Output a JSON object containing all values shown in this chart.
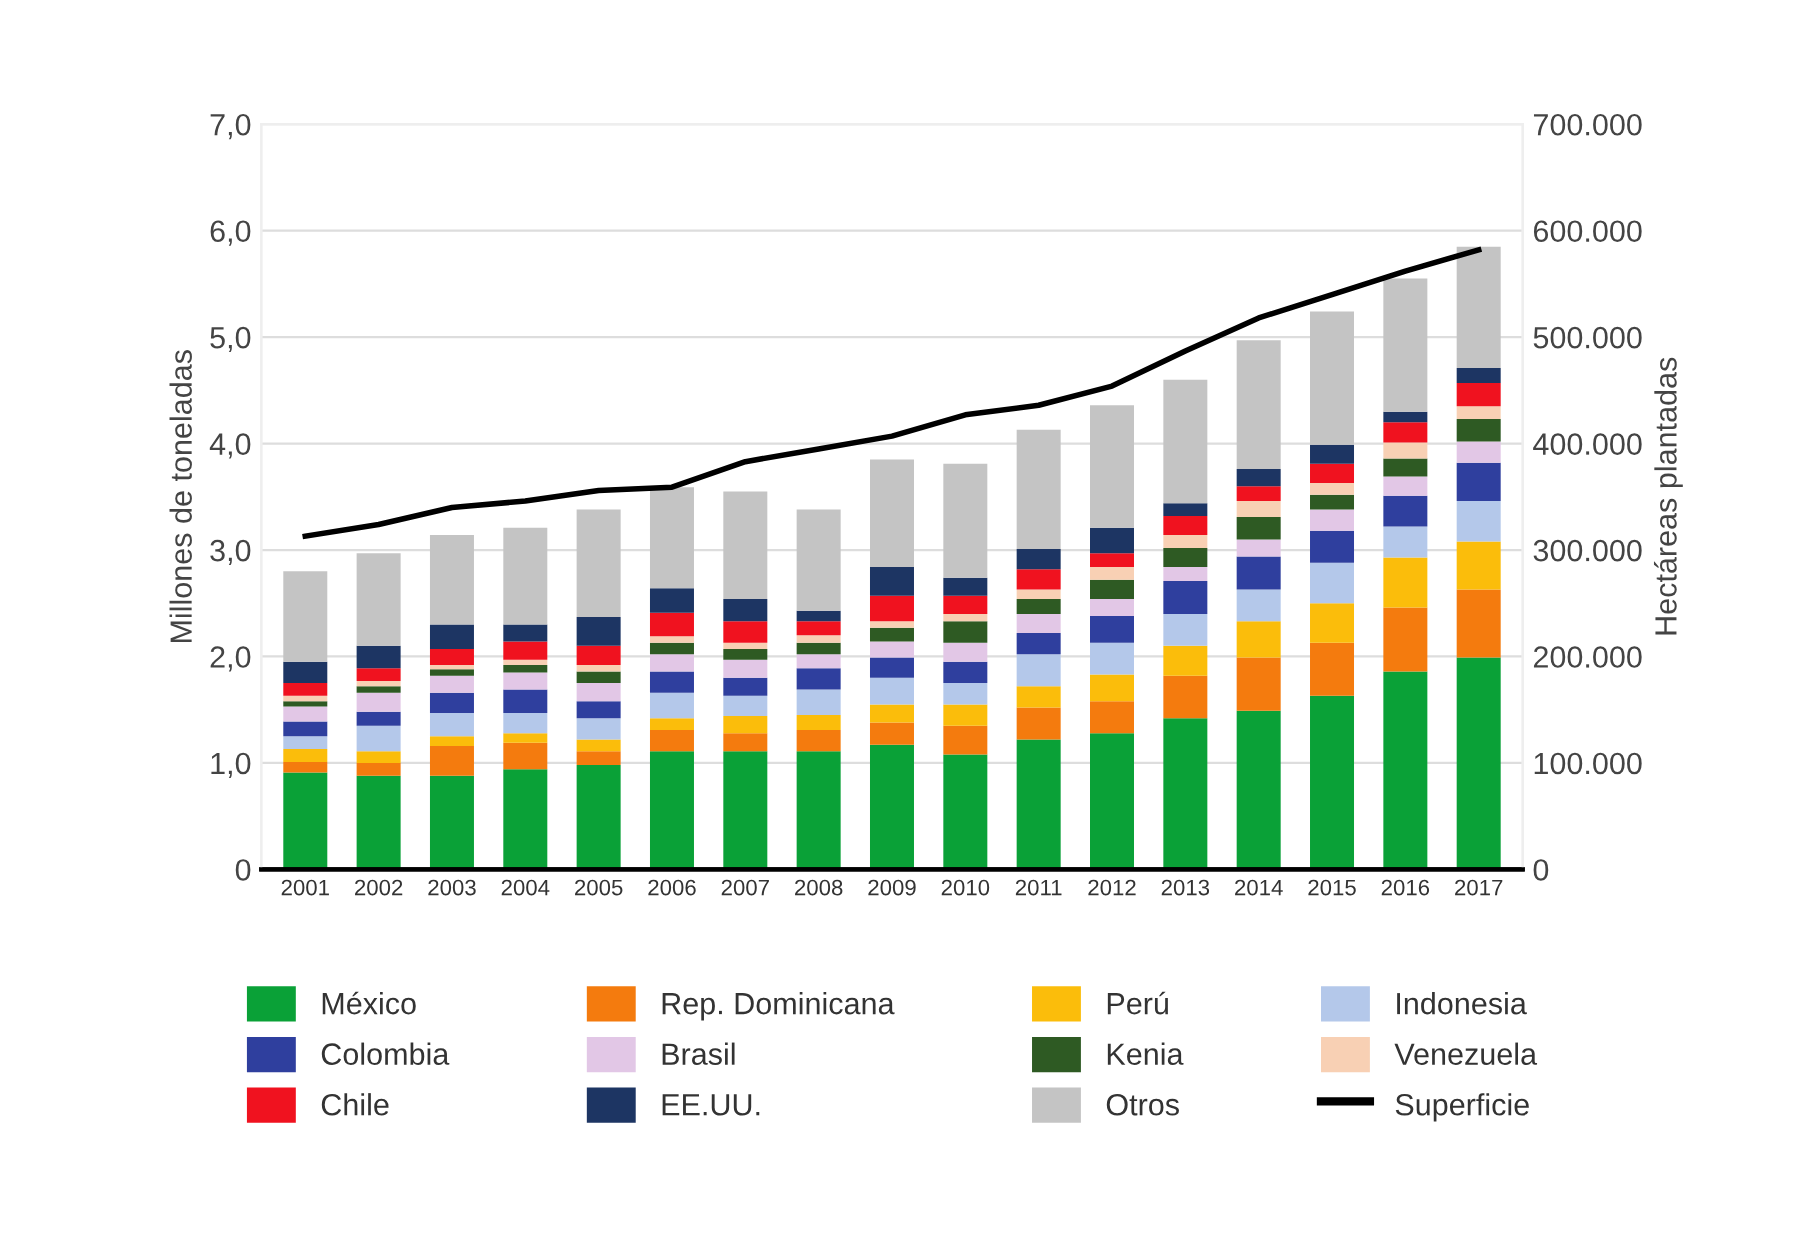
{
  "chart_data": {
    "type": "bar",
    "stacked": true,
    "xlabel": null,
    "ylabel": "Millones de toneladas",
    "y2label": "Hectáreas plantadas",
    "categories": [
      "2001",
      "2002",
      "2003",
      "2004",
      "2005",
      "2006",
      "2007",
      "2008",
      "2009",
      "2010",
      "2011",
      "2012",
      "2013",
      "2014",
      "2015",
      "2016",
      "2017"
    ],
    "series": [
      {
        "name": "México",
        "color": "#0aa137",
        "values": [
          0.91,
          0.88,
          0.88,
          0.94,
          0.98,
          1.11,
          1.11,
          1.11,
          1.17,
          1.08,
          1.22,
          1.28,
          1.42,
          1.49,
          1.63,
          1.86,
          1.99
        ]
      },
      {
        "name": "Rep. Dominicana",
        "color": "#f47b0e",
        "values": [
          0.1,
          0.12,
          0.28,
          0.25,
          0.13,
          0.2,
          0.17,
          0.2,
          0.21,
          0.27,
          0.3,
          0.3,
          0.4,
          0.5,
          0.5,
          0.6,
          0.64
        ]
      },
      {
        "name": "Perú",
        "color": "#fbbd0b",
        "values": [
          0.12,
          0.11,
          0.09,
          0.09,
          0.11,
          0.11,
          0.16,
          0.14,
          0.17,
          0.2,
          0.2,
          0.25,
          0.28,
          0.34,
          0.37,
          0.47,
          0.45
        ]
      },
      {
        "name": "Indonesia",
        "color": "#b4c8ea",
        "values": [
          0.12,
          0.24,
          0.22,
          0.19,
          0.2,
          0.24,
          0.19,
          0.24,
          0.25,
          0.2,
          0.3,
          0.3,
          0.3,
          0.3,
          0.38,
          0.29,
          0.38
        ]
      },
      {
        "name": "Colombia",
        "color": "#2f3f9e",
        "values": [
          0.14,
          0.13,
          0.19,
          0.22,
          0.16,
          0.2,
          0.17,
          0.2,
          0.19,
          0.2,
          0.2,
          0.25,
          0.31,
          0.31,
          0.3,
          0.29,
          0.36
        ]
      },
      {
        "name": "Brasil",
        "color": "#e2c7e6",
        "values": [
          0.14,
          0.18,
          0.16,
          0.16,
          0.17,
          0.16,
          0.17,
          0.13,
          0.15,
          0.18,
          0.18,
          0.16,
          0.13,
          0.16,
          0.2,
          0.18,
          0.2
        ]
      },
      {
        "name": "Kenia",
        "color": "#2e5a23",
        "values": [
          0.05,
          0.06,
          0.06,
          0.07,
          0.11,
          0.11,
          0.1,
          0.11,
          0.13,
          0.2,
          0.14,
          0.18,
          0.18,
          0.21,
          0.14,
          0.17,
          0.21
        ]
      },
      {
        "name": "Venezuela",
        "color": "#f8d0b4",
        "values": [
          0.05,
          0.05,
          0.04,
          0.05,
          0.06,
          0.06,
          0.06,
          0.07,
          0.06,
          0.07,
          0.09,
          0.12,
          0.12,
          0.15,
          0.11,
          0.15,
          0.12
        ]
      },
      {
        "name": "Chile",
        "color": "#f0121f",
        "values": [
          0.12,
          0.12,
          0.15,
          0.17,
          0.18,
          0.22,
          0.2,
          0.13,
          0.24,
          0.17,
          0.19,
          0.13,
          0.18,
          0.14,
          0.18,
          0.19,
          0.22
        ]
      },
      {
        "name": "EE.UU.",
        "color": "#1d3563",
        "values": [
          0.2,
          0.21,
          0.23,
          0.16,
          0.27,
          0.23,
          0.21,
          0.1,
          0.27,
          0.17,
          0.19,
          0.24,
          0.12,
          0.16,
          0.18,
          0.1,
          0.14
        ]
      },
      {
        "name": "Otros",
        "color": "#c4c4c4",
        "values": [
          0.85,
          0.87,
          0.84,
          0.91,
          1.01,
          0.95,
          1.01,
          0.95,
          1.01,
          1.07,
          1.12,
          1.15,
          1.16,
          1.21,
          1.25,
          1.25,
          1.14
        ]
      },
      {
        "name": "Superficie",
        "type": "line",
        "axis": "y2",
        "color": "#000000",
        "values": [
          313000,
          324000,
          340000,
          346000,
          356000,
          359000,
          383000,
          395000,
          407000,
          427000,
          436000,
          454000,
          487000,
          518000,
          540000,
          562000,
          582000
        ]
      }
    ],
    "ylim": [
      0,
      7
    ],
    "yticks": [
      {
        "value": 0,
        "label": "0"
      },
      {
        "value": 1,
        "label": "1,0"
      },
      {
        "value": 2,
        "label": "2,0"
      },
      {
        "value": 3,
        "label": "3,0"
      },
      {
        "value": 4,
        "label": "4,0"
      },
      {
        "value": 5,
        "label": "5,0"
      },
      {
        "value": 6,
        "label": "6,0"
      },
      {
        "value": 7,
        "label": "7,0"
      }
    ],
    "y2lim": [
      0,
      700000
    ],
    "y2ticks": [
      {
        "value": 0,
        "label": "0"
      },
      {
        "value": 100000,
        "label": "100.000"
      },
      {
        "value": 200000,
        "label": "200.000"
      },
      {
        "value": 300000,
        "label": "300.000"
      },
      {
        "value": 400000,
        "label": "400.000"
      },
      {
        "value": 500000,
        "label": "500.000"
      },
      {
        "value": 600000,
        "label": "600.000"
      },
      {
        "value": 700000,
        "label": "700.000"
      }
    ],
    "grid": "y",
    "legend": "bottom",
    "marker": "none",
    "line_style": "solid"
  }
}
